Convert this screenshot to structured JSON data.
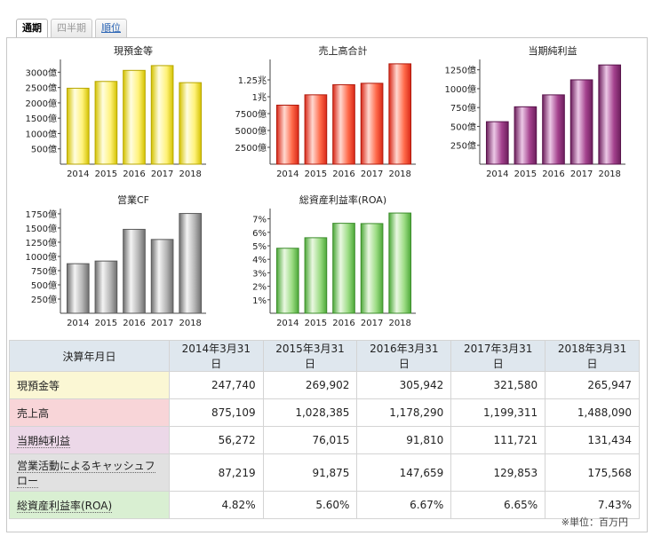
{
  "tabs": [
    {
      "label": "通期",
      "state": "active"
    },
    {
      "label": "四半期",
      "state": "disabled"
    },
    {
      "label": "順位",
      "state": "link"
    }
  ],
  "charts": [
    {
      "title": "現預金等",
      "type": "bar",
      "categories": [
        "2014",
        "2015",
        "2016",
        "2017",
        "2018"
      ],
      "values": [
        247740,
        269902,
        305942,
        321580,
        265947
      ],
      "ylim": [
        0,
        330000
      ],
      "ticks": [
        {
          "v": 50000,
          "label": "500億"
        },
        {
          "v": 100000,
          "label": "1000億"
        },
        {
          "v": 150000,
          "label": "1500億"
        },
        {
          "v": 200000,
          "label": "2000億"
        },
        {
          "v": 250000,
          "label": "2500億"
        },
        {
          "v": 300000,
          "label": "3000億"
        }
      ],
      "color": {
        "light": "#fffde0",
        "mid": "#fff27a",
        "dark": "#d4c200",
        "edge": "#b7a600"
      }
    },
    {
      "title": "売上高合計",
      "type": "bar",
      "categories": [
        "2014",
        "2015",
        "2016",
        "2017",
        "2018"
      ],
      "values": [
        875109,
        1028385,
        1178290,
        1199311,
        1488090
      ],
      "ylim": [
        0,
        1500000
      ],
      "ticks": [
        {
          "v": 250000,
          "label": "2500億"
        },
        {
          "v": 500000,
          "label": "5000億"
        },
        {
          "v": 750000,
          "label": "7500億"
        },
        {
          "v": 1000000,
          "label": "1兆"
        },
        {
          "v": 1250000,
          "label": "1.25兆"
        }
      ],
      "color": {
        "light": "#ffd8d0",
        "mid": "#ff6a4a",
        "dark": "#d82818",
        "edge": "#b01a0c"
      }
    },
    {
      "title": "当期純利益",
      "type": "bar",
      "categories": [
        "2014",
        "2015",
        "2016",
        "2017",
        "2018"
      ],
      "values": [
        56272,
        76015,
        91810,
        111721,
        131434
      ],
      "ylim": [
        0,
        134000
      ],
      "ticks": [
        {
          "v": 25000,
          "label": "250億"
        },
        {
          "v": 50000,
          "label": "500億"
        },
        {
          "v": 75000,
          "label": "750億"
        },
        {
          "v": 100000,
          "label": "1000億"
        },
        {
          "v": 125000,
          "label": "1250億"
        }
      ],
      "color": {
        "light": "#ecc8e6",
        "mid": "#a4428e",
        "dark": "#6c1e5c",
        "edge": "#5a144c"
      }
    },
    {
      "title": "営業CF",
      "type": "bar",
      "categories": [
        "2014",
        "2015",
        "2016",
        "2017",
        "2018"
      ],
      "values": [
        87219,
        91875,
        147659,
        129853,
        175568
      ],
      "ylim": [
        0,
        178000
      ],
      "ticks": [
        {
          "v": 25000,
          "label": "250億"
        },
        {
          "v": 50000,
          "label": "500億"
        },
        {
          "v": 75000,
          "label": "750億"
        },
        {
          "v": 100000,
          "label": "1000億"
        },
        {
          "v": 125000,
          "label": "1250億"
        },
        {
          "v": 150000,
          "label": "1500億"
        },
        {
          "v": 175000,
          "label": "1750億"
        }
      ],
      "color": {
        "light": "#f4f4f4",
        "mid": "#b4b4b4",
        "dark": "#6e6e6e",
        "edge": "#5a5a5a"
      }
    },
    {
      "title": "総資産利益率(ROA)",
      "type": "bar",
      "categories": [
        "2014",
        "2015",
        "2016",
        "2017",
        "2018"
      ],
      "values": [
        4.82,
        5.6,
        6.67,
        6.65,
        7.43
      ],
      "ylim": [
        0,
        7.5
      ],
      "ticks": [
        {
          "v": 1,
          "label": "1%"
        },
        {
          "v": 2,
          "label": "2%"
        },
        {
          "v": 3,
          "label": "3%"
        },
        {
          "v": 4,
          "label": "4%"
        },
        {
          "v": 5,
          "label": "5%"
        },
        {
          "v": 6,
          "label": "6%"
        },
        {
          "v": 7,
          "label": "7%"
        }
      ],
      "color": {
        "light": "#eaf8e2",
        "mid": "#9cdc84",
        "dark": "#4ca838",
        "edge": "#3c8c2c"
      }
    }
  ],
  "table": {
    "header": [
      "決算年月日",
      "2014年3月31日",
      "2015年3月31日",
      "2016年3月31日",
      "2017年3月31日",
      "2018年3月31日"
    ],
    "rows": [
      {
        "label": "現預金等",
        "values": [
          "247,740",
          "269,902",
          "305,942",
          "321,580",
          "265,947"
        ]
      },
      {
        "label": "売上高",
        "values": [
          "875,109",
          "1,028,385",
          "1,178,290",
          "1,199,311",
          "1,488,090"
        ]
      },
      {
        "label": "当期純利益",
        "values": [
          "56,272",
          "76,015",
          "91,810",
          "111,721",
          "131,434"
        ]
      },
      {
        "label": "営業活動によるキャッシュフロー",
        "values": [
          "87,219",
          "91,875",
          "147,659",
          "129,853",
          "175,568"
        ]
      },
      {
        "label": "総資産利益率(ROA)",
        "values": [
          "4.82%",
          "5.60%",
          "6.67%",
          "6.65%",
          "7.43%"
        ]
      }
    ],
    "unit_note": "※単位：百万円"
  },
  "chart_data": [
    {
      "type": "bar",
      "title": "現預金等",
      "categories": [
        "2014",
        "2015",
        "2016",
        "2017",
        "2018"
      ],
      "values": [
        247740,
        269902,
        305942,
        321580,
        265947
      ]
    },
    {
      "type": "bar",
      "title": "売上高合計",
      "categories": [
        "2014",
        "2015",
        "2016",
        "2017",
        "2018"
      ],
      "values": [
        875109,
        1028385,
        1178290,
        1199311,
        1488090
      ]
    },
    {
      "type": "bar",
      "title": "当期純利益",
      "categories": [
        "2014",
        "2015",
        "2016",
        "2017",
        "2018"
      ],
      "values": [
        56272,
        76015,
        91810,
        111721,
        131434
      ]
    },
    {
      "type": "bar",
      "title": "営業CF",
      "categories": [
        "2014",
        "2015",
        "2016",
        "2017",
        "2018"
      ],
      "values": [
        87219,
        91875,
        147659,
        129853,
        175568
      ]
    },
    {
      "type": "bar",
      "title": "総資産利益率(ROA)",
      "categories": [
        "2014",
        "2015",
        "2016",
        "2017",
        "2018"
      ],
      "values": [
        4.82,
        5.6,
        6.67,
        6.65,
        7.43
      ]
    }
  ]
}
